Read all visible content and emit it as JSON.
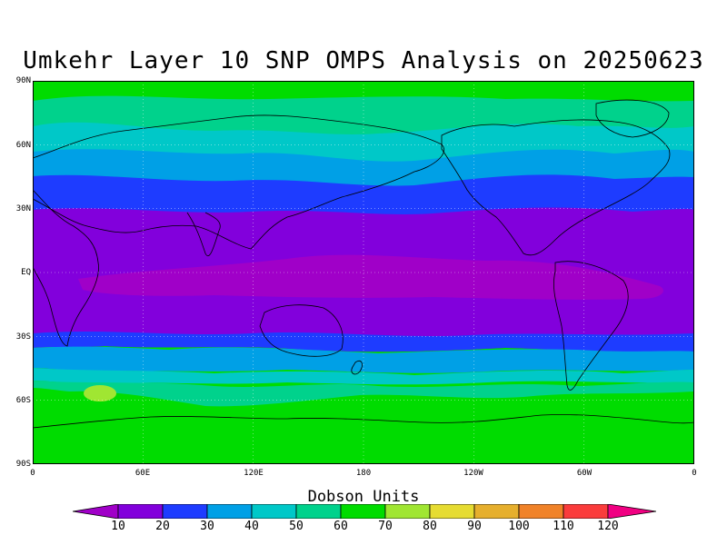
{
  "title": "Umkehr Layer 10 SNP OMPS Analysis on 20250623",
  "lat_labels": [
    "90N",
    "60N",
    "30N",
    "EQ",
    "30S",
    "60S",
    "90S"
  ],
  "lon_labels": [
    "0",
    "60E",
    "120E",
    "180",
    "120W",
    "60W",
    "0"
  ],
  "colorbar": {
    "title": "Dobson Units",
    "ticks": [
      "10",
      "20",
      "30",
      "40",
      "50",
      "60",
      "70",
      "80",
      "90",
      "100",
      "110",
      "120"
    ],
    "colors": [
      "#a000c8",
      "#8200dc",
      "#1e3cff",
      "#00a0e6",
      "#00c8c8",
      "#00d28c",
      "#00dc00",
      "#a0e632",
      "#e6dc32",
      "#e6af2d",
      "#f08228",
      "#fa3c3c",
      "#f00082"
    ]
  },
  "chart_data": {
    "type": "heatmap",
    "variable": "Umkehr Layer 10 ozone",
    "units": "Dobson Units",
    "lat_range": [
      -90,
      90
    ],
    "lon_range": [
      0,
      360
    ],
    "zonal_bands": [
      {
        "lat": 90,
        "value": 65
      },
      {
        "lat": 75,
        "value": 60
      },
      {
        "lat": 60,
        "value": 52
      },
      {
        "lat": 45,
        "value": 38
      },
      {
        "lat": 35,
        "value": 25
      },
      {
        "lat": 20,
        "value": 15
      },
      {
        "lat": 0,
        "value": 8
      },
      {
        "lat": -20,
        "value": 15
      },
      {
        "lat": -35,
        "value": 25
      },
      {
        "lat": -45,
        "value": 40
      },
      {
        "lat": -55,
        "value": 55
      },
      {
        "lat": -65,
        "value": 62
      },
      {
        "lat": -90,
        "value": 65
      }
    ],
    "features": [
      {
        "region": "South Indian Ocean near 50S 30E",
        "value": 75
      }
    ]
  }
}
